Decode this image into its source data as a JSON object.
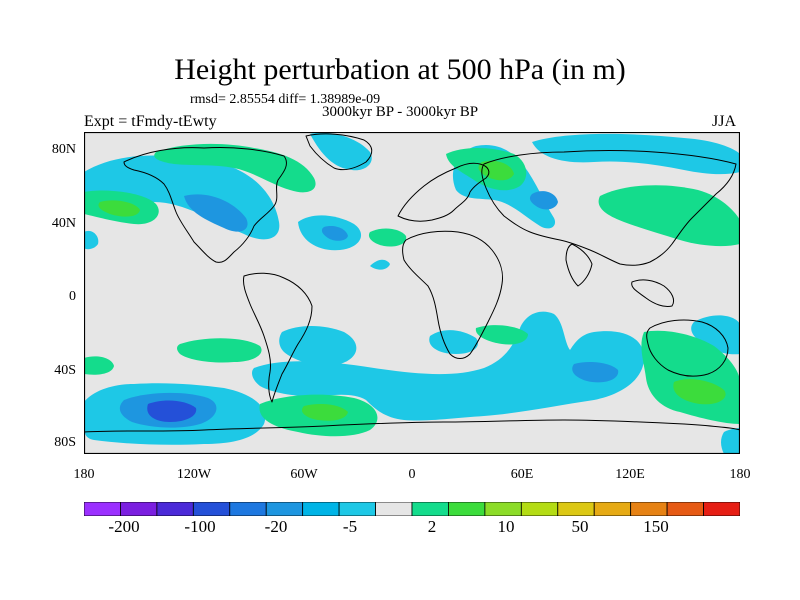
{
  "title": "Height perturbation at 500 hPa (in m)",
  "stats": "rmsd= 2.85554 diff= 1.38989e-09",
  "period": "3000kyr BP - 3000kyr BP",
  "experiment": "Expt = tFmdy-tEwty",
  "season": "JJA",
  "map": {
    "projection": "cylindrical equidistant",
    "lat_ticks": [
      "80N",
      "40N",
      "0",
      "40S",
      "80S"
    ],
    "lon_ticks": [
      "180",
      "120W",
      "60W",
      "0",
      "60E",
      "120E",
      "180"
    ],
    "background_color": "#e6e6e6",
    "coastline_color": "#000000"
  },
  "colorbar": {
    "colors": [
      "#9b30ff",
      "#7b1fe0",
      "#4b2ad8",
      "#2450d8",
      "#1e78e0",
      "#1e96e0",
      "#00b4e6",
      "#1ec8e6",
      "#e6e6e6",
      "#14dc8c",
      "#3cdc3c",
      "#8cdc28",
      "#b4dc14",
      "#dcc814",
      "#e6aa14",
      "#e68214",
      "#e65a14",
      "#e61e14"
    ],
    "tick_labels": [
      "-200",
      "-100",
      "-20",
      "-5",
      "2",
      "10",
      "50",
      "150"
    ]
  }
}
